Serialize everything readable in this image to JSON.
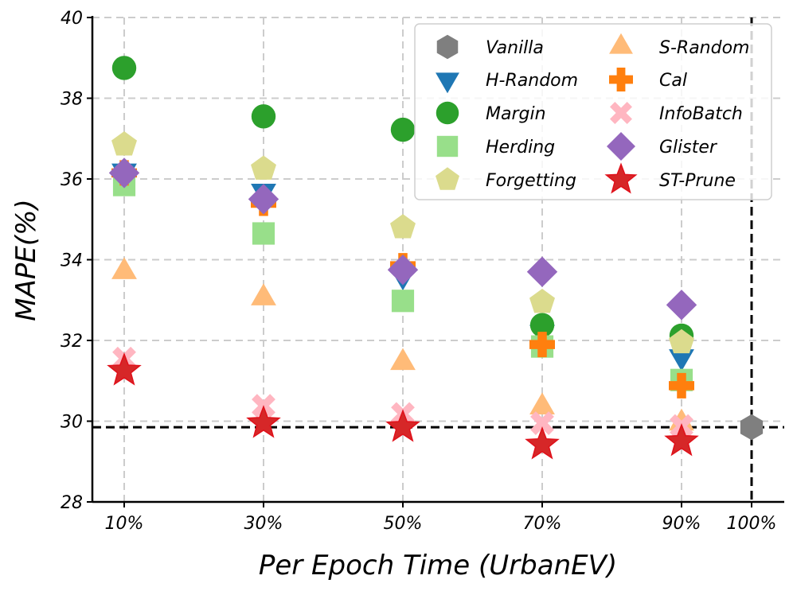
{
  "chart_data": {
    "type": "scatter",
    "xlabel": "Per Epoch Time (UrbanEV)",
    "ylabel": "MAPE(%)",
    "categories": [
      "10%",
      "30%",
      "50%",
      "70%",
      "90%",
      "100%"
    ],
    "ylim": [
      28,
      40
    ],
    "yticks": [
      28,
      30,
      32,
      34,
      36,
      38,
      40
    ],
    "grid": true,
    "legend_position": "top-right",
    "reference_line": {
      "value": 29.85,
      "style": "dashed"
    },
    "reference_vline": {
      "category": "100%",
      "style": "dashed"
    },
    "series": [
      {
        "name": "Vanilla",
        "marker": "hexagon",
        "color": "#7f7f7f",
        "values": [
          null,
          null,
          null,
          null,
          null,
          29.85
        ]
      },
      {
        "name": "H-Random",
        "marker": "triangle-down",
        "color": "#1f77b4",
        "values": [
          36.2,
          35.7,
          33.6,
          32.2,
          31.6,
          null
        ]
      },
      {
        "name": "Margin",
        "marker": "circle",
        "color": "#2ca02c",
        "values": [
          38.75,
          37.55,
          37.22,
          32.38,
          32.12,
          null
        ]
      },
      {
        "name": "Herding",
        "marker": "square",
        "color": "#98df8a",
        "values": [
          35.85,
          34.65,
          32.98,
          31.85,
          31.02,
          null
        ]
      },
      {
        "name": "Forgetting",
        "marker": "pentagon",
        "color": "#dbdb8d",
        "values": [
          36.85,
          36.25,
          34.8,
          32.95,
          31.95,
          null
        ]
      },
      {
        "name": "S-Random",
        "marker": "triangle-up",
        "color": "#ffbb78",
        "values": [
          33.7,
          33.05,
          31.45,
          30.35,
          29.95,
          null
        ]
      },
      {
        "name": "Cal",
        "marker": "plus",
        "color": "#ff7f0e",
        "values": [
          36.15,
          35.4,
          33.85,
          31.9,
          30.88,
          null
        ]
      },
      {
        "name": "InfoBatch",
        "marker": "x",
        "color": "#ffb6c1",
        "values": [
          31.55,
          30.38,
          30.18,
          29.95,
          29.88,
          null
        ]
      },
      {
        "name": "Glister",
        "marker": "diamond",
        "color": "#9467bd",
        "values": [
          36.15,
          35.5,
          33.75,
          33.7,
          32.88,
          null
        ]
      },
      {
        "name": "ST-Prune",
        "marker": "star",
        "color": "#d62728",
        "values": [
          31.25,
          29.95,
          29.85,
          29.42,
          29.5,
          null
        ]
      }
    ]
  }
}
